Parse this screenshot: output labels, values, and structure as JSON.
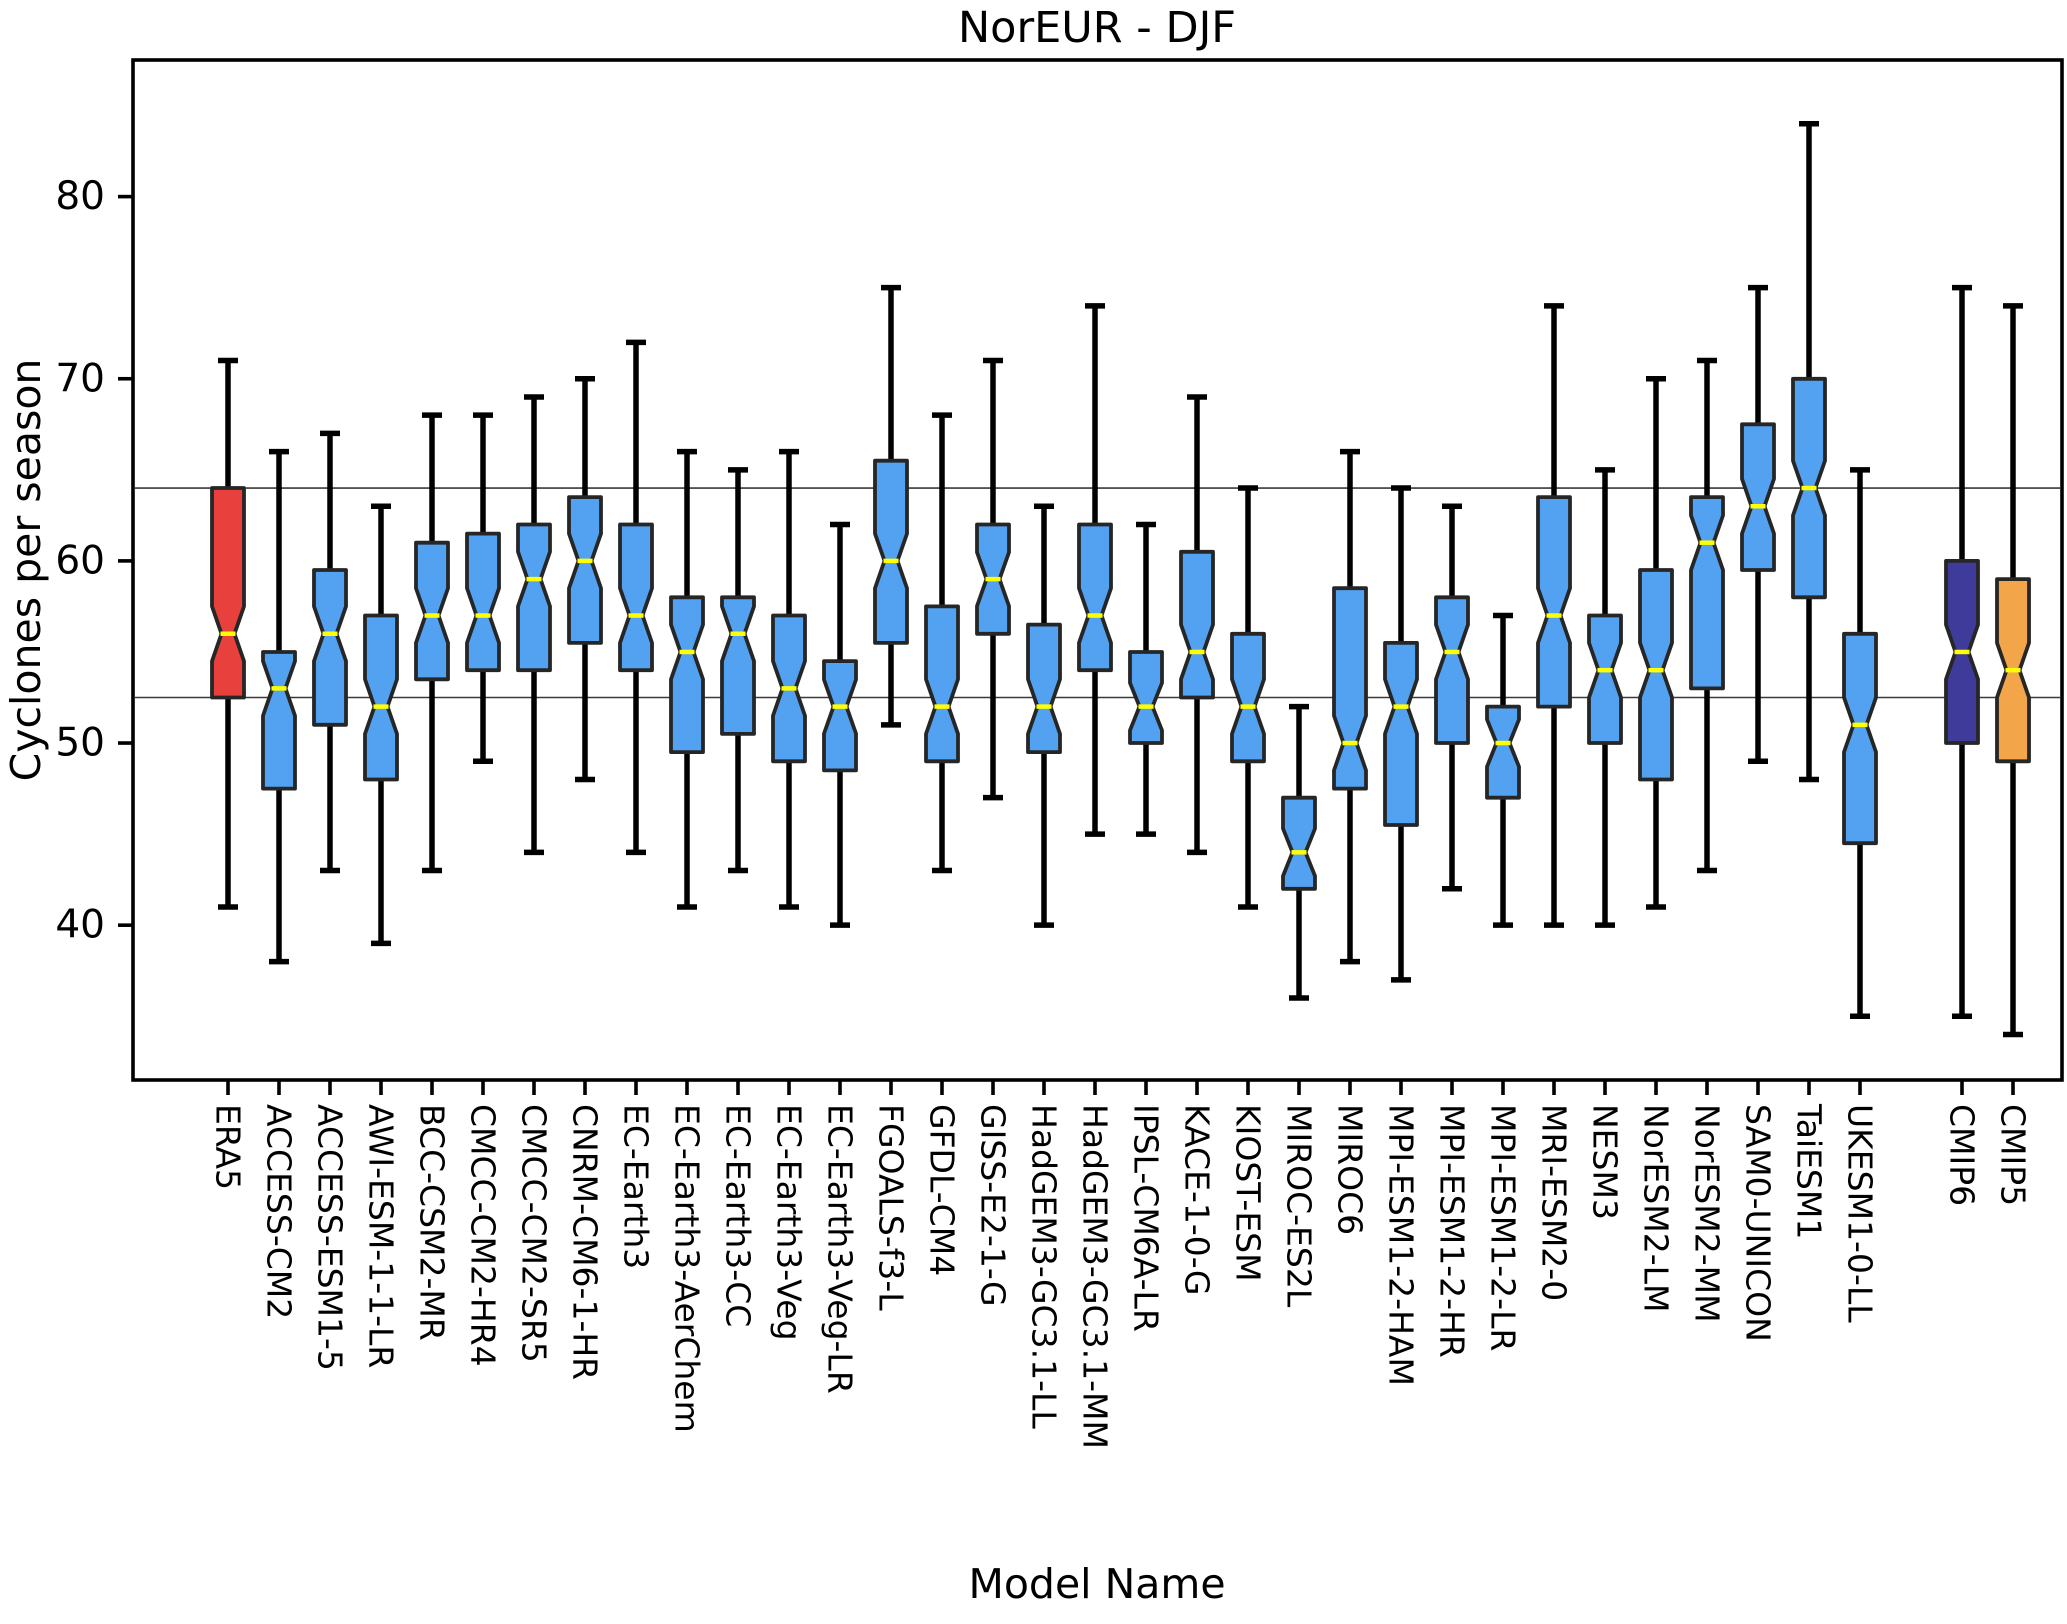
{
  "figure": {
    "title": "NorEUR - DJF",
    "ylabel": "Cyclones per season",
    "xlabel": "Model Name"
  },
  "chart_data": {
    "type": "boxplot",
    "title": "NorEUR - DJF",
    "xlabel": "Model Name",
    "ylabel": "Cyclones per season",
    "ylim": [
      31.5,
      87.5
    ],
    "yticks": [
      40,
      50,
      60,
      70,
      80
    ],
    "grid": false,
    "notched": true,
    "legend": "none",
    "reference_lines": [
      64,
      52.5
    ],
    "reference_lines_note": "thin horizontal lines marking ERA5 upper and lower quartiles",
    "colors": {
      "reference_box": "#E8413D",
      "model_box": "#53A2F2",
      "cmip6_summary_box": "#3F3B9B",
      "cmip5_summary_box": "#F3A649",
      "median_line": "#FFFF00",
      "box_edge": "#262626",
      "whisker": "#000000"
    },
    "boxes": [
      {
        "label": "ERA5",
        "group": "reference",
        "whislo": 41,
        "q1": 52.5,
        "med": 56,
        "q3": 64,
        "whishi": 71
      },
      {
        "label": "ACCESS-CM2",
        "group": "cmip6_model",
        "whislo": 38,
        "q1": 47.5,
        "med": 53,
        "q3": 55,
        "whishi": 66
      },
      {
        "label": "ACCESS-ESM1-5",
        "group": "cmip6_model",
        "whislo": 43,
        "q1": 51,
        "med": 56,
        "q3": 59.5,
        "whishi": 67
      },
      {
        "label": "AWI-ESM-1-1-LR",
        "group": "cmip6_model",
        "whislo": 39,
        "q1": 48,
        "med": 52,
        "q3": 57,
        "whishi": 63
      },
      {
        "label": "BCC-CSM2-MR",
        "group": "cmip6_model",
        "whislo": 43,
        "q1": 53.5,
        "med": 57,
        "q3": 61,
        "whishi": 68
      },
      {
        "label": "CMCC-CM2-HR4",
        "group": "cmip6_model",
        "whislo": 49,
        "q1": 54,
        "med": 57,
        "q3": 61.5,
        "whishi": 68
      },
      {
        "label": "CMCC-CM2-SR5",
        "group": "cmip6_model",
        "whislo": 44,
        "q1": 54,
        "med": 59,
        "q3": 62,
        "whishi": 69
      },
      {
        "label": "CNRM-CM6-1-HR",
        "group": "cmip6_model",
        "whislo": 48,
        "q1": 55.5,
        "med": 60,
        "q3": 63.5,
        "whishi": 70
      },
      {
        "label": "EC-Earth3",
        "group": "cmip6_model",
        "whislo": 44,
        "q1": 54,
        "med": 57,
        "q3": 62,
        "whishi": 72
      },
      {
        "label": "EC-Earth3-AerChem",
        "group": "cmip6_model",
        "whislo": 41,
        "q1": 49.5,
        "med": 55,
        "q3": 58,
        "whishi": 66
      },
      {
        "label": "EC-Earth3-CC",
        "group": "cmip6_model",
        "whislo": 43,
        "q1": 50.5,
        "med": 56,
        "q3": 58,
        "whishi": 65
      },
      {
        "label": "EC-Earth3-Veg",
        "group": "cmip6_model",
        "whislo": 41,
        "q1": 49,
        "med": 53,
        "q3": 57,
        "whishi": 66
      },
      {
        "label": "EC-Earth3-Veg-LR",
        "group": "cmip6_model",
        "whislo": 40,
        "q1": 48.5,
        "med": 52,
        "q3": 54.5,
        "whishi": 62
      },
      {
        "label": "FGOALS-f3-L",
        "group": "cmip6_model",
        "whislo": 51,
        "q1": 55.5,
        "med": 60,
        "q3": 65.5,
        "whishi": 75
      },
      {
        "label": "GFDL-CM4",
        "group": "cmip6_model",
        "whislo": 43,
        "q1": 49,
        "med": 52,
        "q3": 57.5,
        "whishi": 68
      },
      {
        "label": "GISS-E2-1-G",
        "group": "cmip6_model",
        "whislo": 47,
        "q1": 56,
        "med": 59,
        "q3": 62,
        "whishi": 71
      },
      {
        "label": "HadGEM3-GC3.1-LL",
        "group": "cmip6_model",
        "whislo": 40,
        "q1": 49.5,
        "med": 52,
        "q3": 56.5,
        "whishi": 63
      },
      {
        "label": "HadGEM3-GC3.1-MM",
        "group": "cmip6_model",
        "whislo": 45,
        "q1": 54,
        "med": 57,
        "q3": 62,
        "whishi": 74
      },
      {
        "label": "IPSL-CM6A-LR",
        "group": "cmip6_model",
        "whislo": 45,
        "q1": 50,
        "med": 52,
        "q3": 55,
        "whishi": 62
      },
      {
        "label": "KACE-1-0-G",
        "group": "cmip6_model",
        "whislo": 44,
        "q1": 52.5,
        "med": 55,
        "q3": 60.5,
        "whishi": 69
      },
      {
        "label": "KIOST-ESM",
        "group": "cmip6_model",
        "whislo": 41,
        "q1": 49,
        "med": 52,
        "q3": 56,
        "whishi": 64
      },
      {
        "label": "MIROC-ES2L",
        "group": "cmip6_model",
        "whislo": 36,
        "q1": 42,
        "med": 44,
        "q3": 47,
        "whishi": 52
      },
      {
        "label": "MIROC6",
        "group": "cmip6_model",
        "whislo": 38,
        "q1": 47.5,
        "med": 50,
        "q3": 58.5,
        "whishi": 66
      },
      {
        "label": "MPI-ESM1-2-HAM",
        "group": "cmip6_model",
        "whislo": 37,
        "q1": 45.5,
        "med": 52,
        "q3": 55.5,
        "whishi": 64
      },
      {
        "label": "MPI-ESM1-2-HR",
        "group": "cmip6_model",
        "whislo": 42,
        "q1": 50,
        "med": 55,
        "q3": 58,
        "whishi": 63
      },
      {
        "label": "MPI-ESM1-2-LR",
        "group": "cmip6_model",
        "whislo": 40,
        "q1": 47,
        "med": 50,
        "q3": 52,
        "whishi": 57
      },
      {
        "label": "MRI-ESM2-0",
        "group": "cmip6_model",
        "whislo": 40,
        "q1": 52,
        "med": 57,
        "q3": 63.5,
        "whishi": 74
      },
      {
        "label": "NESM3",
        "group": "cmip6_model",
        "whislo": 40,
        "q1": 50,
        "med": 54,
        "q3": 57,
        "whishi": 65
      },
      {
        "label": "NorESM2-LM",
        "group": "cmip6_model",
        "whislo": 41,
        "q1": 48,
        "med": 54,
        "q3": 59.5,
        "whishi": 70
      },
      {
        "label": "NorESM2-MM",
        "group": "cmip6_model",
        "whislo": 43,
        "q1": 53,
        "med": 61,
        "q3": 63.5,
        "whishi": 71
      },
      {
        "label": "SAM0-UNICON",
        "group": "cmip6_model",
        "whislo": 49,
        "q1": 59.5,
        "med": 63,
        "q3": 67.5,
        "whishi": 75
      },
      {
        "label": "TaiESM1",
        "group": "cmip6_model",
        "whislo": 48,
        "q1": 58,
        "med": 64,
        "q3": 70,
        "whishi": 84
      },
      {
        "label": "UKESM1-0-LL",
        "group": "cmip6_model",
        "whislo": 35,
        "q1": 44.5,
        "med": 51,
        "q3": 56,
        "whishi": 65
      },
      {
        "label": "CMIP6",
        "group": "cmip6_summary",
        "whislo": 35,
        "q1": 50,
        "med": 55,
        "q3": 60,
        "whishi": 75
      },
      {
        "label": "CMIP5",
        "group": "cmip5_summary",
        "whislo": 34,
        "q1": 49,
        "med": 54,
        "q3": 59,
        "whishi": 74
      }
    ]
  }
}
